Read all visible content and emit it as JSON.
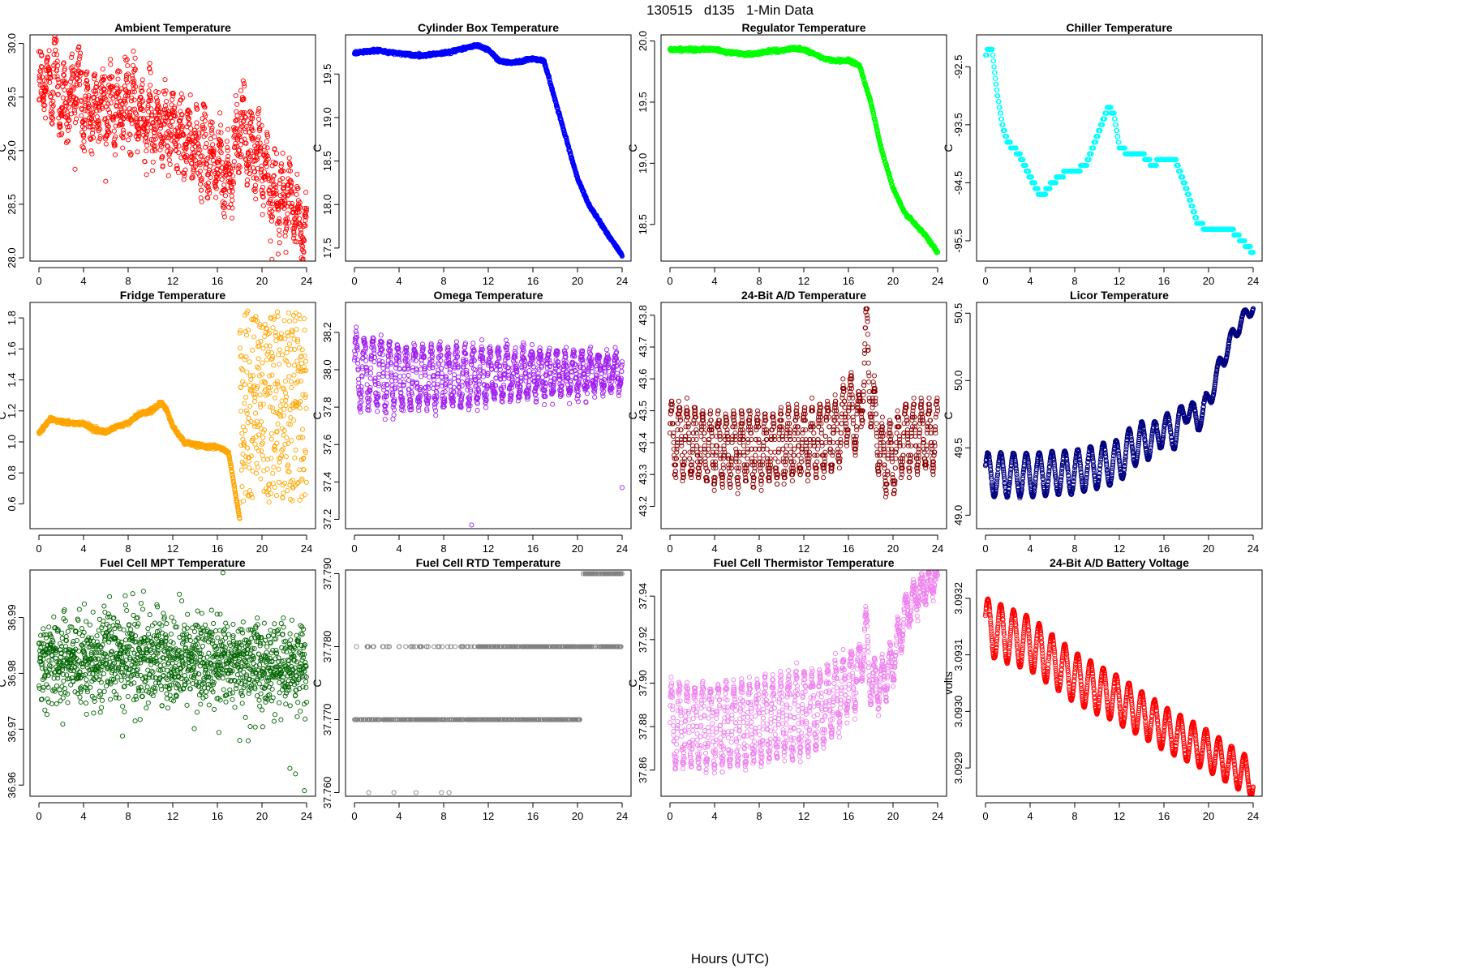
{
  "figure": {
    "suptitle": "130515   d135   1-Min Data",
    "xlabel": "Hours (UTC)"
  },
  "chart_data": [
    {
      "type": "scatter",
      "title": "Ambient Temperature",
      "ylabel": "C",
      "color": "#ff0000",
      "xlim": [
        -0.8,
        24.8
      ],
      "ylim": [
        27.97,
        30.08
      ],
      "xticks": [
        0,
        4,
        8,
        12,
        16,
        20,
        24
      ],
      "yticks": [
        28.0,
        28.5,
        29.0,
        29.5,
        30.0
      ],
      "yticklabels": [
        "28.0",
        "28.5",
        "29.0",
        "29.5",
        "30.0"
      ],
      "trend": [
        [
          0,
          29.45
        ],
        [
          0.5,
          29.7
        ],
        [
          1,
          29.55
        ],
        [
          1.5,
          29.85
        ],
        [
          2,
          29.4
        ],
        [
          3,
          29.5
        ],
        [
          3.5,
          29.7
        ],
        [
          4,
          29.35
        ],
        [
          5,
          29.4
        ],
        [
          6,
          29.45
        ],
        [
          7,
          29.35
        ],
        [
          8,
          29.45
        ],
        [
          9,
          29.35
        ],
        [
          10,
          29.3
        ],
        [
          11,
          29.25
        ],
        [
          12,
          29.2
        ],
        [
          13,
          29.1
        ],
        [
          14,
          29.05
        ],
        [
          15,
          28.95
        ],
        [
          16,
          28.9
        ],
        [
          17,
          28.7
        ],
        [
          18,
          29.25
        ],
        [
          19,
          29.0
        ],
        [
          20,
          28.95
        ],
        [
          21,
          28.6
        ],
        [
          22,
          28.55
        ],
        [
          23,
          28.4
        ],
        [
          24,
          28.15
        ]
      ],
      "noise": 0.28,
      "style": "oscillate",
      "period": 0.7,
      "amp": 0.22,
      "n": 1440
    },
    {
      "type": "scatter",
      "title": "Cylinder Box Temperature",
      "ylabel": "C",
      "color": "#0000ff",
      "xlim": [
        -0.8,
        24.8
      ],
      "ylim": [
        17.35,
        19.95
      ],
      "xticks": [
        0,
        4,
        8,
        12,
        16,
        20,
        24
      ],
      "yticks": [
        17.5,
        18.0,
        18.5,
        19.0,
        19.5
      ],
      "yticklabels": [
        "17.5",
        "18.0",
        "18.5",
        "19.0",
        "19.5"
      ],
      "trend": [
        [
          0,
          19.74
        ],
        [
          1,
          19.76
        ],
        [
          2,
          19.77
        ],
        [
          3,
          19.75
        ],
        [
          4,
          19.74
        ],
        [
          5,
          19.72
        ],
        [
          6,
          19.71
        ],
        [
          7,
          19.73
        ],
        [
          8,
          19.74
        ],
        [
          9,
          19.77
        ],
        [
          10,
          19.8
        ],
        [
          11,
          19.83
        ],
        [
          12,
          19.78
        ],
        [
          13,
          19.65
        ],
        [
          14,
          19.63
        ],
        [
          15,
          19.65
        ],
        [
          16,
          19.68
        ],
        [
          17,
          19.65
        ],
        [
          18,
          19.2
        ],
        [
          19,
          18.75
        ],
        [
          20,
          18.3
        ],
        [
          21,
          18.0
        ],
        [
          22,
          17.8
        ],
        [
          23,
          17.6
        ],
        [
          24,
          17.42
        ]
      ],
      "noise": 0.02,
      "style": "line",
      "n": 1440
    },
    {
      "type": "scatter",
      "title": "Regulator Temperature",
      "ylabel": "C",
      "color": "#00ff00",
      "xlim": [
        -0.8,
        24.8
      ],
      "ylim": [
        18.2,
        20.05
      ],
      "xticks": [
        0,
        4,
        8,
        12,
        16,
        20,
        24
      ],
      "yticks": [
        18.5,
        19.0,
        19.5,
        20.0
      ],
      "yticklabels": [
        "18.5",
        "19.0",
        "19.5",
        "20.0"
      ],
      "trend": [
        [
          0,
          19.93
        ],
        [
          2,
          19.93
        ],
        [
          4,
          19.93
        ],
        [
          5,
          19.91
        ],
        [
          6,
          19.9
        ],
        [
          7,
          19.89
        ],
        [
          8,
          19.9
        ],
        [
          9,
          19.92
        ],
        [
          10,
          19.92
        ],
        [
          11,
          19.94
        ],
        [
          12,
          19.93
        ],
        [
          13,
          19.89
        ],
        [
          14,
          19.85
        ],
        [
          15,
          19.84
        ],
        [
          16,
          19.84
        ],
        [
          17,
          19.8
        ],
        [
          18,
          19.5
        ],
        [
          19,
          19.1
        ],
        [
          20,
          18.8
        ],
        [
          21,
          18.6
        ],
        [
          22,
          18.5
        ],
        [
          23,
          18.4
        ],
        [
          24,
          18.27
        ]
      ],
      "noise": 0.015,
      "style": "line",
      "n": 1440
    },
    {
      "type": "scatter",
      "title": "Chiller Temperature",
      "ylabel": "C",
      "color": "#00ffff",
      "xlim": [
        -0.8,
        24.8
      ],
      "ylim": [
        -95.85,
        -91.95
      ],
      "xticks": [
        0,
        4,
        8,
        12,
        16,
        20,
        24
      ],
      "yticks": [
        -95.5,
        -94.5,
        -93.5,
        -92.5
      ],
      "yticklabels": [
        "-95.5",
        "-94.5",
        "-93.5",
        "-92.5"
      ],
      "trend": [
        [
          0,
          -92.3
        ],
        [
          0.3,
          -92.2
        ],
        [
          0.6,
          -92.2
        ],
        [
          1,
          -92.9
        ],
        [
          1.5,
          -93.5
        ],
        [
          2,
          -93.8
        ],
        [
          3,
          -94.0
        ],
        [
          4,
          -94.4
        ],
        [
          5,
          -94.75
        ],
        [
          6,
          -94.5
        ],
        [
          7,
          -94.35
        ],
        [
          8,
          -94.3
        ],
        [
          9,
          -94.2
        ],
        [
          10,
          -93.7
        ],
        [
          11,
          -93.2
        ],
        [
          11.5,
          -93.3
        ],
        [
          12,
          -93.9
        ],
        [
          13,
          -94.0
        ],
        [
          14,
          -94.0
        ],
        [
          15,
          -94.2
        ],
        [
          16,
          -94.05
        ],
        [
          17,
          -94.1
        ],
        [
          18,
          -94.6
        ],
        [
          19,
          -95.2
        ],
        [
          20,
          -95.3
        ],
        [
          21,
          -95.3
        ],
        [
          22,
          -95.3
        ],
        [
          23,
          -95.5
        ],
        [
          24,
          -95.7
        ]
      ],
      "noise": 0.02,
      "style": "quant",
      "q": 0.1,
      "n": 1440
    },
    {
      "type": "scatter",
      "title": "Fridge Temperature",
      "ylabel": "C",
      "color": "#ffa500",
      "xlim": [
        -0.8,
        24.8
      ],
      "ylim": [
        0.44,
        1.9
      ],
      "xticks": [
        0,
        4,
        8,
        12,
        16,
        20,
        24
      ],
      "yticks": [
        0.6,
        0.8,
        1.0,
        1.2,
        1.4,
        1.6,
        1.8
      ],
      "yticklabels": [
        "0.6",
        "0.8",
        "1.0",
        "1.2",
        "1.4",
        "1.6",
        "1.8"
      ],
      "trend": [
        [
          0,
          1.06
        ],
        [
          0.5,
          1.1
        ],
        [
          1,
          1.15
        ],
        [
          2,
          1.13
        ],
        [
          3,
          1.12
        ],
        [
          4,
          1.12
        ],
        [
          5,
          1.08
        ],
        [
          6,
          1.06
        ],
        [
          7,
          1.1
        ],
        [
          8,
          1.12
        ],
        [
          9,
          1.18
        ],
        [
          10,
          1.2
        ],
        [
          11,
          1.25
        ],
        [
          11.5,
          1.2
        ],
        [
          12,
          1.1
        ],
        [
          13,
          1.0
        ],
        [
          14,
          0.98
        ],
        [
          15,
          0.97
        ],
        [
          16,
          0.97
        ],
        [
          17,
          0.93
        ],
        [
          17.5,
          0.72
        ],
        [
          18,
          0.5
        ]
      ],
      "noise": 0.015,
      "style": "line",
      "n": 1080,
      "scatter_after": [
        18,
        24
      ],
      "scatter_range": [
        0.6,
        1.85
      ],
      "scatter_n": 360
    },
    {
      "type": "scatter",
      "title": "Omega Temperature",
      "ylabel": "C",
      "color": "#a020f0",
      "xlim": [
        -0.8,
        24.8
      ],
      "ylim": [
        37.15,
        38.36
      ],
      "xticks": [
        0,
        4,
        8,
        12,
        16,
        20,
        24
      ],
      "yticks": [
        37.2,
        37.4,
        37.6,
        37.8,
        38.0,
        38.2
      ],
      "yticklabels": [
        "37.2",
        "37.4",
        "37.6",
        "37.8",
        "38.0",
        "38.2"
      ],
      "trend": [
        [
          0,
          38.0
        ],
        [
          4,
          37.96
        ],
        [
          8,
          37.96
        ],
        [
          12,
          37.97
        ],
        [
          16,
          37.98
        ],
        [
          20,
          37.98
        ],
        [
          24,
          37.99
        ]
      ],
      "noise": 0.05,
      "style": "oscillate",
      "period": 0.75,
      "amp": 0.18,
      "ampDecay": true,
      "n": 1440,
      "outliers": [
        [
          10.5,
          37.17
        ],
        [
          24,
          37.37
        ]
      ]
    },
    {
      "type": "scatter",
      "title": "24-Bit A/D Temperature",
      "ylabel": "C",
      "color": "#8b0000",
      "xlim": [
        -0.8,
        24.8
      ],
      "ylim": [
        43.13,
        43.84
      ],
      "xticks": [
        0,
        4,
        8,
        12,
        16,
        20,
        24
      ],
      "yticks": [
        43.2,
        43.3,
        43.4,
        43.5,
        43.6,
        43.7,
        43.8
      ],
      "yticklabels": [
        "43.2",
        "43.3",
        "43.4",
        "43.5",
        "43.6",
        "43.7",
        "43.8"
      ],
      "trend": [
        [
          0,
          43.42
        ],
        [
          4,
          43.38
        ],
        [
          8,
          43.38
        ],
        [
          12,
          43.4
        ],
        [
          15,
          43.42
        ],
        [
          16,
          43.52
        ],
        [
          17,
          43.45
        ],
        [
          17.6,
          43.75
        ],
        [
          18,
          43.55
        ],
        [
          19,
          43.35
        ],
        [
          20,
          43.35
        ],
        [
          21,
          43.42
        ],
        [
          24,
          43.42
        ]
      ],
      "noise": 0.03,
      "style": "oscillate",
      "period": 0.7,
      "amp": 0.1,
      "q": 0.01,
      "n": 1440
    },
    {
      "type": "scatter",
      "title": "Licor Temperature",
      "ylabel": "C",
      "color": "#000080",
      "xlim": [
        -0.8,
        24.8
      ],
      "ylim": [
        48.9,
        50.58
      ],
      "xticks": [
        0,
        4,
        8,
        12,
        16,
        20,
        24
      ],
      "yticks": [
        49.0,
        49.5,
        50.0,
        50.5
      ],
      "yticklabels": [
        "49.0",
        "49.5",
        "50.0",
        "50.5"
      ],
      "trend": [
        [
          0,
          49.3
        ],
        [
          4,
          49.3
        ],
        [
          8,
          49.32
        ],
        [
          12,
          49.4
        ],
        [
          13,
          49.5
        ],
        [
          14,
          49.55
        ],
        [
          15,
          49.55
        ],
        [
          16,
          49.65
        ],
        [
          17,
          49.6
        ],
        [
          18,
          49.8
        ],
        [
          19,
          49.7
        ],
        [
          20,
          49.85
        ],
        [
          21,
          50.1
        ],
        [
          22,
          50.3
        ],
        [
          23,
          50.45
        ],
        [
          24,
          50.55
        ]
      ],
      "noise": 0.008,
      "style": "oscillate",
      "period": 1.15,
      "amp": 0.16,
      "ampFade": true,
      "n": 1440
    },
    {
      "type": "scatter",
      "title": "Fuel Cell MPT Temperature",
      "ylabel": "C",
      "color": "#006400",
      "xlim": [
        -0.8,
        24.8
      ],
      "ylim": [
        36.958,
        36.9985
      ],
      "xticks": [
        0,
        4,
        8,
        12,
        16,
        20,
        24
      ],
      "yticks": [
        36.96,
        36.97,
        36.98,
        36.99
      ],
      "yticklabels": [
        "36.96",
        "36.97",
        "36.98",
        "36.99"
      ],
      "trend": [
        [
          0,
          36.982
        ],
        [
          8,
          36.983
        ],
        [
          16,
          36.982
        ],
        [
          24,
          36.981
        ]
      ],
      "noise": 0.004,
      "style": "random",
      "n": 1440,
      "outliers": [
        [
          16.5,
          36.998
        ],
        [
          22.5,
          36.963
        ],
        [
          23,
          36.962
        ],
        [
          23.8,
          36.959
        ],
        [
          18,
          36.968
        ]
      ]
    },
    {
      "type": "scatter",
      "title": "Fuel Cell RTD Temperature",
      "ylabel": "C",
      "color": "#808080",
      "xlim": [
        -0.8,
        24.8
      ],
      "ylim": [
        37.7595,
        37.7905
      ],
      "xticks": [
        0,
        4,
        8,
        12,
        16,
        20,
        24
      ],
      "yticks": [
        37.76,
        37.77,
        37.78,
        37.79
      ],
      "yticklabels": [
        "37.760",
        "37.770",
        "37.780",
        "37.790"
      ],
      "style": "levels",
      "levels": [
        {
          "y": 37.77,
          "from": 0,
          "to": 20.3,
          "density": 0.9
        },
        {
          "y": 37.78,
          "from": 0,
          "to": 24,
          "density": 0.2,
          "denseFrom": 11,
          "denseDensity": 0.9
        },
        {
          "y": 37.79,
          "from": 20.5,
          "to": 24,
          "density": 0.9
        },
        {
          "y": 37.76,
          "from": 0.5,
          "to": 9,
          "density": 0.025
        }
      ],
      "n": 1440
    },
    {
      "type": "scatter",
      "title": "Fuel Cell Thermistor Temperature",
      "ylabel": "C",
      "color": "#ee82ee",
      "xlim": [
        -0.8,
        24.8
      ],
      "ylim": [
        37.848,
        37.952
      ],
      "xticks": [
        0,
        4,
        8,
        12,
        16,
        20,
        24
      ],
      "yticks": [
        37.86,
        37.88,
        37.9,
        37.92,
        37.94
      ],
      "yticklabels": [
        "37.86",
        "37.88",
        "37.90",
        "37.92",
        "37.94"
      ],
      "trend": [
        [
          0,
          37.88
        ],
        [
          4,
          37.88
        ],
        [
          8,
          37.882
        ],
        [
          12,
          37.886
        ],
        [
          14,
          37.89
        ],
        [
          16,
          37.9
        ],
        [
          17,
          37.905
        ],
        [
          17.5,
          37.925
        ],
        [
          18,
          37.9
        ],
        [
          19,
          37.9
        ],
        [
          20,
          37.91
        ],
        [
          21,
          37.93
        ],
        [
          22,
          37.94
        ],
        [
          23,
          37.945
        ],
        [
          24,
          37.948
        ]
      ],
      "noise": 0.004,
      "style": "oscillate",
      "period": 0.7,
      "amp": 0.018,
      "ampFade": true,
      "n": 1440
    },
    {
      "type": "scatter",
      "title": "24-Bit A/D Battery Voltage",
      "ylabel": "volts",
      "color": "#ff0000",
      "xlim": [
        -0.8,
        24.8
      ],
      "ylim": [
        3.09285,
        3.09325
      ],
      "xticks": [
        0,
        4,
        8,
        12,
        16,
        20,
        24
      ],
      "yticks": [
        3.0929,
        3.093,
        3.0931,
        3.0932
      ],
      "yticklabels": [
        "3.0929",
        "3.0930",
        "3.0931",
        "3.0932"
      ],
      "trend": [
        [
          0,
          3.09315
        ],
        [
          4,
          3.09312
        ],
        [
          8,
          3.09306
        ],
        [
          12,
          3.09302
        ],
        [
          16,
          3.09297
        ],
        [
          20,
          3.09293
        ],
        [
          24,
          3.09288
        ]
      ],
      "noise": 1.5e-06,
      "style": "oscillate",
      "period": 1.15,
      "amp": 5e-05,
      "ampDecayLate": true,
      "n": 1440
    }
  ]
}
